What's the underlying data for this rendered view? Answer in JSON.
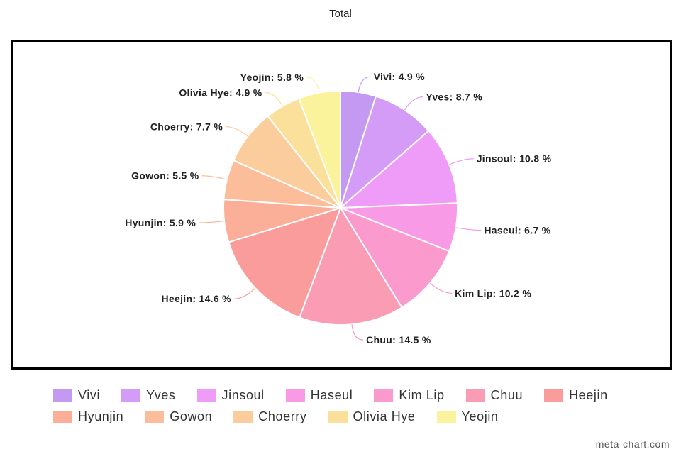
{
  "chart_data": {
    "type": "pie",
    "title": "Total",
    "value_suffix": " %",
    "slices": [
      {
        "label": "Vivi",
        "value": 4.9,
        "color": "#c499f2"
      },
      {
        "label": "Yves",
        "value": 8.7,
        "color": "#d59cf7"
      },
      {
        "label": "Jinsoul",
        "value": 10.8,
        "color": "#ee9cf7"
      },
      {
        "label": "Haseul",
        "value": 6.7,
        "color": "#f99ae7"
      },
      {
        "label": "Kim Lip",
        "value": 10.2,
        "color": "#fb9bcd"
      },
      {
        "label": "Chuu",
        "value": 14.5,
        "color": "#fa9cb3"
      },
      {
        "label": "Heejin",
        "value": 14.6,
        "color": "#fa9c9c"
      },
      {
        "label": "Hyunjin",
        "value": 5.9,
        "color": "#fbae98"
      },
      {
        "label": "Gowon",
        "value": 5.5,
        "color": "#fbbd9a"
      },
      {
        "label": "Choerry",
        "value": 7.7,
        "color": "#fbcc9c"
      },
      {
        "label": "Olivia Hye",
        "value": 4.9,
        "color": "#fbe09c"
      },
      {
        "label": "Yeojin",
        "value": 5.8,
        "color": "#fbf39c"
      }
    ],
    "legend_position": "bottom"
  },
  "watermark": "meta-chart.com"
}
